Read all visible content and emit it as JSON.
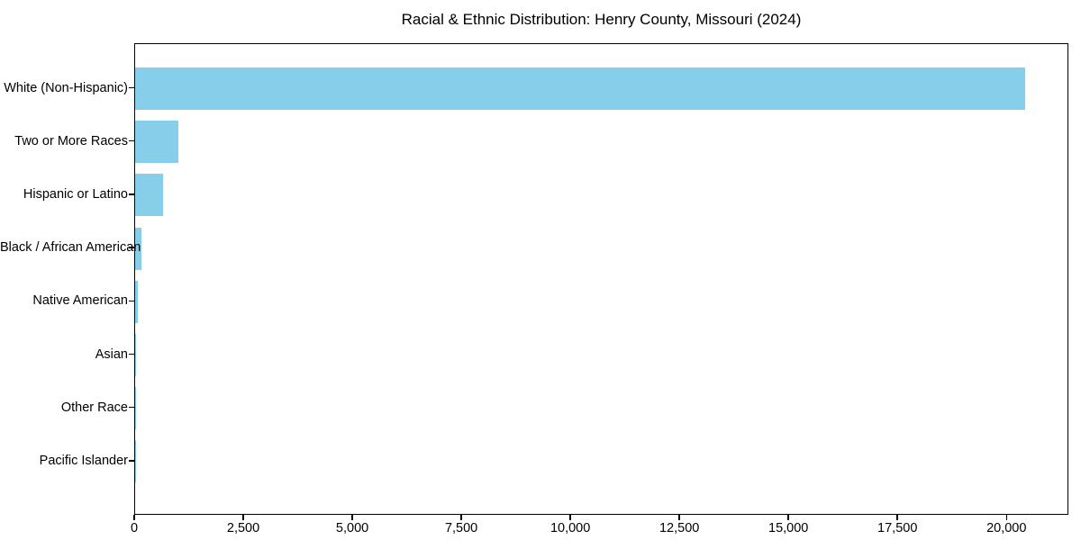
{
  "title": "Racial & Ethnic Distribution: Henry County, Missouri (2024)",
  "chart_data": {
    "type": "bar",
    "orientation": "horizontal",
    "title": "Racial & Ethnic Distribution: Henry County, Missouri (2024)",
    "xlabel": "",
    "ylabel": "",
    "categories": [
      "White (Non-Hispanic)",
      "Two or More Races",
      "Hispanic or Latino",
      "Black / African American",
      "Native American",
      "Asian",
      "Other Race",
      "Pacific Islander"
    ],
    "values": [
      20400,
      990,
      650,
      150,
      60,
      28,
      10,
      4
    ],
    "xlim": [
      0,
      21420
    ],
    "xticks": [
      0,
      2500,
      5000,
      7500,
      10000,
      12500,
      15000,
      17500,
      20000
    ],
    "xtick_labels": [
      "0",
      "2,500",
      "5,000",
      "7,500",
      "10,000",
      "12,500",
      "15,000",
      "17,500",
      "20,000"
    ],
    "grid": false,
    "legend": "none",
    "bar_color": "#87CEEB",
    "axis_color": "#000000",
    "text_color": "#000000",
    "background_color": "#ffffff"
  }
}
